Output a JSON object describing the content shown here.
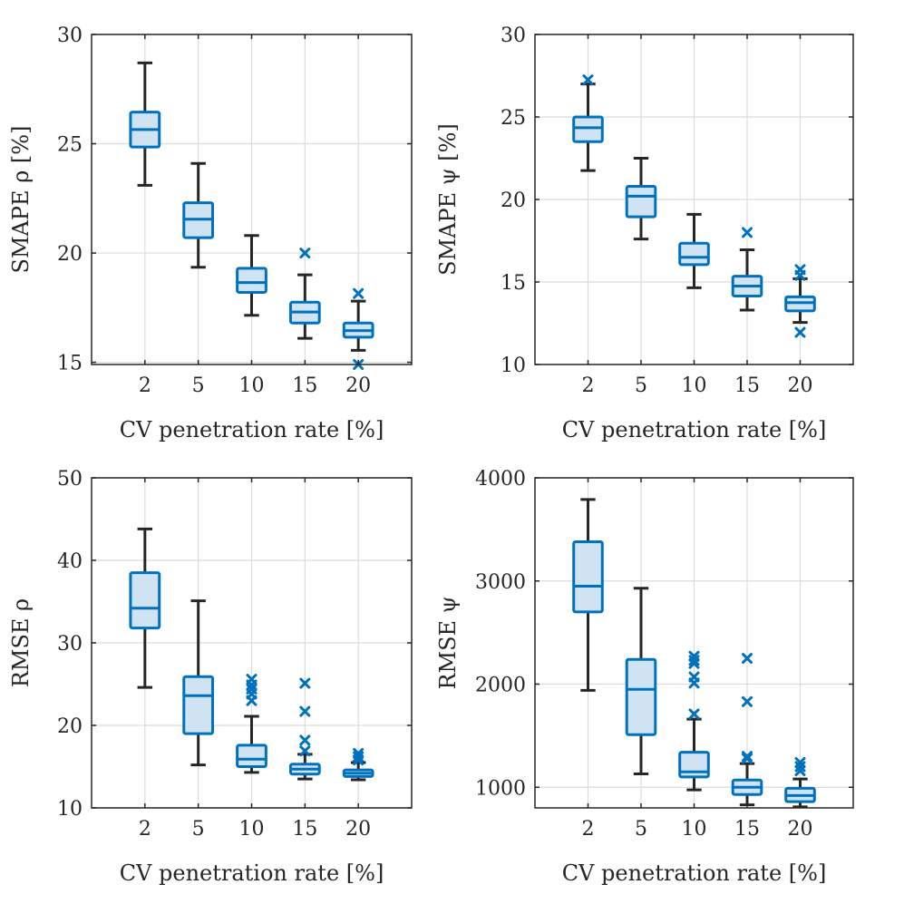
{
  "figure": {
    "background": "#ffffff"
  },
  "style": {
    "box_color": "#0072BD",
    "box_fill": "#cfe3f2",
    "whisker_color": "#262626",
    "grid_color": "#dcdcdc",
    "axis_color": "#262626"
  },
  "chart_data": [
    {
      "type": "box",
      "xlabel": "CV penetration rate [%]",
      "ylabel": "SMAPE ρ [%]",
      "categories": [
        "2",
        "5",
        "10",
        "15",
        "20"
      ],
      "ylim": [
        14.9,
        30
      ],
      "yticks": [
        15,
        20,
        25,
        30
      ],
      "grid": true,
      "boxes": [
        {
          "q1": 24.85,
          "median": 25.65,
          "q3": 26.45,
          "low": 23.1,
          "high": 28.7,
          "outliers": []
        },
        {
          "q1": 20.7,
          "median": 21.55,
          "q3": 22.3,
          "low": 19.35,
          "high": 24.1,
          "outliers": []
        },
        {
          "q1": 18.2,
          "median": 18.65,
          "q3": 19.3,
          "low": 17.15,
          "high": 20.8,
          "outliers": []
        },
        {
          "q1": 16.8,
          "median": 17.3,
          "q3": 17.75,
          "low": 16.1,
          "high": 19.0,
          "outliers": [
            20.0
          ]
        },
        {
          "q1": 16.15,
          "median": 16.45,
          "q3": 16.8,
          "low": 15.55,
          "high": 17.8,
          "outliers": [
            18.15,
            14.9
          ]
        }
      ]
    },
    {
      "type": "box",
      "xlabel": "CV penetration rate [%]",
      "ylabel": "SMAPE ψ [%]",
      "categories": [
        "2",
        "5",
        "10",
        "15",
        "20"
      ],
      "ylim": [
        10,
        30
      ],
      "yticks": [
        10,
        15,
        20,
        25,
        30
      ],
      "grid": true,
      "boxes": [
        {
          "q1": 23.5,
          "median": 24.35,
          "q3": 25.0,
          "low": 21.75,
          "high": 27.0,
          "outliers": [
            27.25
          ]
        },
        {
          "q1": 18.95,
          "median": 20.2,
          "q3": 20.8,
          "low": 17.6,
          "high": 22.5,
          "outliers": []
        },
        {
          "q1": 16.05,
          "median": 16.5,
          "q3": 17.35,
          "low": 14.65,
          "high": 19.1,
          "outliers": []
        },
        {
          "q1": 14.15,
          "median": 14.75,
          "q3": 15.35,
          "low": 13.3,
          "high": 16.95,
          "outliers": [
            18.0
          ]
        },
        {
          "q1": 13.25,
          "median": 13.75,
          "q3": 14.1,
          "low": 12.55,
          "high": 15.2,
          "outliers": [
            15.75,
            15.4,
            11.95
          ]
        }
      ]
    },
    {
      "type": "box",
      "xlabel": "CV penetration rate [%]",
      "ylabel": "RMSE ρ",
      "categories": [
        "2",
        "5",
        "10",
        "15",
        "20"
      ],
      "ylim": [
        10,
        50
      ],
      "yticks": [
        10,
        20,
        30,
        40,
        50
      ],
      "grid": true,
      "boxes": [
        {
          "q1": 31.8,
          "median": 34.2,
          "q3": 38.5,
          "low": 24.6,
          "high": 43.8,
          "outliers": []
        },
        {
          "q1": 19.0,
          "median": 23.6,
          "q3": 25.9,
          "low": 15.2,
          "high": 35.1,
          "outliers": []
        },
        {
          "q1": 15.0,
          "median": 15.9,
          "q3": 17.6,
          "low": 14.3,
          "high": 21.1,
          "outliers": [
            25.6,
            24.9,
            24.4,
            23.8,
            23.0
          ]
        },
        {
          "q1": 14.1,
          "median": 14.7,
          "q3": 15.3,
          "low": 13.5,
          "high": 16.5,
          "outliers": [
            25.1,
            21.7,
            18.2,
            16.9
          ]
        },
        {
          "q1": 13.8,
          "median": 14.2,
          "q3": 14.6,
          "low": 13.4,
          "high": 15.5,
          "outliers": [
            16.6,
            16.2,
            15.8
          ]
        }
      ]
    },
    {
      "type": "box",
      "xlabel": "CV penetration rate [%]",
      "ylabel": "RMSE ψ",
      "categories": [
        "2",
        "5",
        "10",
        "15",
        "20"
      ],
      "ylim": [
        800,
        4000
      ],
      "yticks": [
        1000,
        2000,
        3000,
        4000
      ],
      "grid": true,
      "boxes": [
        {
          "q1": 2700,
          "median": 2950,
          "q3": 3380,
          "low": 1940,
          "high": 3790,
          "outliers": []
        },
        {
          "q1": 1510,
          "median": 1950,
          "q3": 2240,
          "low": 1130,
          "high": 2930,
          "outliers": []
        },
        {
          "q1": 1100,
          "median": 1150,
          "q3": 1340,
          "low": 975,
          "high": 1660,
          "outliers": [
            2270,
            2230,
            2200,
            2070,
            2010,
            1710
          ]
        },
        {
          "q1": 930,
          "median": 1000,
          "q3": 1070,
          "low": 830,
          "high": 1230,
          "outliers": [
            2250,
            1830,
            1300,
            1280
          ]
        },
        {
          "q1": 860,
          "median": 920,
          "q3": 990,
          "low": 810,
          "high": 1080,
          "outliers": [
            1240,
            1200,
            1160
          ]
        }
      ]
    }
  ]
}
